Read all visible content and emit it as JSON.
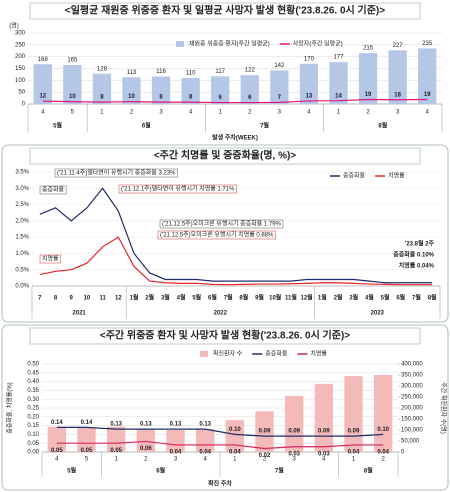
{
  "chart_data": [
    {
      "type": "bar",
      "title": "<일평균 재원중 위중증 환자 및 일평균 사망자 발생 현황('23.8.26. 0시 기준)>",
      "y_label": "(명)",
      "x_label": "발생 주차(WEEK)",
      "categories": [
        "4",
        "5",
        "1",
        "2",
        "3",
        "4",
        "1",
        "2",
        "3",
        "4",
        "1",
        "2",
        "3",
        "4"
      ],
      "x_groups": [
        "5월",
        null,
        "6월",
        null,
        null,
        null,
        "7월",
        null,
        null,
        null,
        "8월",
        null,
        null,
        null
      ],
      "series": [
        {
          "name": "재원중 위중증 환자(주간 일평균)",
          "type": "bar",
          "color": "#b4c7e7",
          "data_labels": true,
          "values": [
            168,
            165,
            128,
            113,
            116,
            110,
            117,
            122,
            142,
            170,
            177,
            215,
            227,
            235
          ]
        },
        {
          "name": "사망자(주간 일평균)",
          "type": "line",
          "color": "#e0177a",
          "data_labels": true,
          "values": [
            12,
            10,
            8,
            10,
            8,
            8,
            6,
            6,
            7,
            13,
            14,
            19,
            18,
            19
          ]
        }
      ],
      "ylim": [
        0,
        300
      ],
      "yticks": [
        0,
        50,
        100,
        150,
        200,
        250,
        300
      ],
      "grid": true,
      "legend": "top-right"
    },
    {
      "type": "line",
      "title": "<주간 치명률 및 중증화율(명, %)>",
      "categories": [
        "7",
        "8",
        "9",
        "10",
        "11",
        "12",
        "1월",
        "2월",
        "3월",
        "4월",
        "5월",
        "6월",
        "7월",
        "8월",
        "9월",
        "10월",
        "11월",
        "12월",
        "1월",
        "2월",
        "3월",
        "4월",
        "5월",
        "6월",
        "7월",
        "8월"
      ],
      "x_groups": [
        "2021",
        null,
        null,
        null,
        null,
        null,
        "2022",
        null,
        null,
        null,
        null,
        null,
        null,
        null,
        null,
        null,
        null,
        null,
        "2023",
        null,
        null,
        null,
        null,
        null,
        null,
        null
      ],
      "series": [
        {
          "name": "중증화율",
          "type": "line",
          "color": "#1f2d6b",
          "values": [
            2.2,
            2.4,
            2.0,
            2.4,
            3.0,
            2.3,
            1.0,
            0.4,
            0.2,
            0.2,
            0.2,
            0.15,
            0.15,
            0.15,
            0.15,
            0.15,
            0.15,
            0.2,
            0.2,
            0.2,
            0.2,
            0.15,
            0.1,
            0.1,
            0.1,
            0.1
          ]
        },
        {
          "name": "치명률",
          "type": "line",
          "color": "#e8262d",
          "values": [
            0.35,
            0.45,
            0.5,
            0.7,
            1.2,
            1.5,
            0.6,
            0.15,
            0.1,
            0.08,
            0.08,
            0.05,
            0.04,
            0.05,
            0.06,
            0.06,
            0.07,
            0.08,
            0.1,
            0.1,
            0.08,
            0.06,
            0.05,
            0.04,
            0.04,
            0.04
          ]
        }
      ],
      "ylim": [
        0,
        3.5
      ],
      "yticks": [
        {
          "value": 0,
          "label": "0.0%"
        },
        {
          "value": 0.5,
          "label": "0.5%"
        },
        {
          "value": 1,
          "label": "1.0%"
        },
        {
          "value": 1.5,
          "label": "1.5%"
        },
        {
          "value": 2,
          "label": "2.0%"
        },
        {
          "value": 2.5,
          "label": "2.5%"
        },
        {
          "value": 3,
          "label": "3.0%"
        },
        {
          "value": 3.5,
          "label": "3.5%"
        }
      ],
      "grid": true,
      "legend": "top-right",
      "annotations": [
        "('21.11.4주)델타변이 유행시기 중증화율 3.23%",
        "('21.12.1주)델타변이 유행시기 치명률 1.71%",
        "('21.12.5주)오미크론 유행시기 중증화율 1.79%",
        "('21.12.5주)오미크론 유행시기 치명률 0.88%",
        "중증화율",
        "치명률",
        "'23.8월 2주",
        "중증화율 0.10%",
        "치명률 0.04%"
      ]
    },
    {
      "type": "bar",
      "title": "<주간 위중증 환자 및 사망자 발생 현황('23.8.26. 0시 기준)>",
      "y_label": "중증화율, 치명률(%)",
      "y2_label": "주간 확진환자 수(명)",
      "x_label": "확진 주차",
      "categories": [
        "4",
        "5",
        "1",
        "2",
        "3",
        "4",
        "1",
        "2",
        "3",
        "4",
        "1",
        "2"
      ],
      "x_groups": [
        "5월",
        null,
        "6월",
        null,
        null,
        null,
        "7월",
        null,
        null,
        null,
        "8월",
        null
      ],
      "series": [
        {
          "name": "확진환자 수",
          "type": "bar",
          "axis": "y2",
          "color": "#f4b9b9",
          "values": [
            115000,
            110000,
            115000,
            105000,
            100000,
            105000,
            145000,
            185000,
            255000,
            310000,
            345000,
            350000
          ]
        },
        {
          "name": "중증화율",
          "type": "line",
          "color": "#1f2d6b",
          "data_labels": true,
          "values": [
            0.14,
            0.14,
            0.13,
            0.13,
            0.13,
            0.13,
            0.1,
            0.09,
            0.09,
            0.09,
            0.09,
            0.1
          ],
          "value_labels": [
            "0.14",
            "0.14",
            "0.13",
            "0.13",
            "0.13",
            "0.13",
            "0.10",
            "0.09",
            "0.09",
            "0.09",
            "0.09",
            "0.10"
          ]
        },
        {
          "name": "치명률",
          "type": "line",
          "color": "#d6245f",
          "data_labels": true,
          "values": [
            0.05,
            0.05,
            0.05,
            0.06,
            0.04,
            0.04,
            0.04,
            0.02,
            0.03,
            0.03,
            0.04,
            0.04
          ],
          "value_labels": [
            "0.05",
            "0.05",
            "0.05",
            "0.06",
            "0.04",
            "0.04",
            "0.04",
            "0.02",
            "0.03",
            "0.03",
            "0.04",
            "0.04"
          ]
        }
      ],
      "ylim": [
        0,
        0.5
      ],
      "yticks": [
        {
          "value": 0,
          "label": "0.00"
        },
        {
          "value": 0.05,
          "label": "0.05"
        },
        {
          "value": 0.1,
          "label": "0.10"
        },
        {
          "value": 0.15,
          "label": "0.15"
        },
        {
          "value": 0.2,
          "label": "0.20"
        },
        {
          "value": 0.25,
          "label": "0.25"
        },
        {
          "value": 0.3,
          "label": "0.30"
        },
        {
          "value": 0.35,
          "label": "0.35"
        },
        {
          "value": 0.4,
          "label": "0.40"
        },
        {
          "value": 0.45,
          "label": "0.45"
        },
        {
          "value": 0.5,
          "label": "0.50"
        }
      ],
      "y2lim": [
        0,
        400000
      ],
      "y2ticks": [
        0,
        {
          "value": 50000,
          "label": "50,000"
        },
        {
          "value": 100000,
          "label": "100,000"
        },
        {
          "value": 150000,
          "label": "150,000"
        },
        {
          "value": 200000,
          "label": "200,000"
        },
        {
          "value": 250000,
          "label": "250,000"
        },
        {
          "value": 300000,
          "label": "300,000"
        },
        {
          "value": 350000,
          "label": "350,000"
        },
        {
          "value": 400000,
          "label": "400,000"
        }
      ],
      "grid": true,
      "legend": "top-right"
    }
  ]
}
